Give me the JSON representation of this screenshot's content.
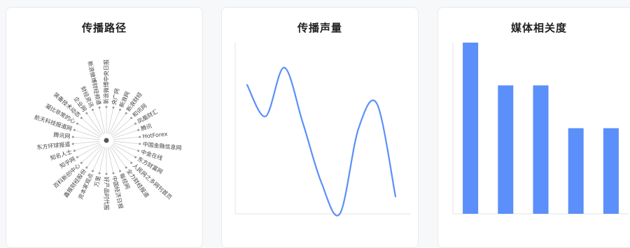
{
  "cards": {
    "path": {
      "title": "传播路径"
    },
    "volume": {
      "title": "传播声量"
    },
    "media": {
      "title": "媒体相关度"
    }
  },
  "propagation_path": {
    "nodes": [
      "新浪微博中央日报",
      "央广网",
      "新浪网",
      "新浪财经",
      "和讯网",
      "凤凰财汇",
      "腾讯",
      "HotForex",
      "中国金融信息网",
      "中金在线",
      "东方财富网",
      "人民网之多网刊首页",
      "全力财经报道",
      "每经网",
      "中国经济日报",
      "好产品时代报",
      "万里",
      "资本家观点",
      "鑫报财经股份",
      "百科新创中心",
      "知乎网",
      "知名人士",
      "东方环球报道",
      "腾讯网",
      "航天科技报道网",
      "凝比非常的心",
      "装备技术动态",
      "企业网",
      "财经资讯",
      "新浪微博财经频道"
    ]
  },
  "chart_data": [
    {
      "type": "line",
      "title": "传播声量",
      "x": [
        0,
        1,
        2,
        3,
        4,
        5,
        6,
        7,
        8
      ],
      "series": [
        {
          "values": [
            82,
            62,
            93,
            58,
            20,
            0,
            54,
            70,
            11
          ]
        }
      ],
      "ylim": [
        0,
        100
      ],
      "color": "#5b8ff9",
      "grid": false
    },
    {
      "type": "bar",
      "title": "媒体相关度",
      "categories": [
        "",
        "",
        "",
        "",
        ""
      ],
      "values": [
        100,
        75,
        75,
        50,
        50
      ],
      "ylim": [
        0,
        100
      ],
      "color": "#5b8ff9",
      "grid": false
    }
  ]
}
